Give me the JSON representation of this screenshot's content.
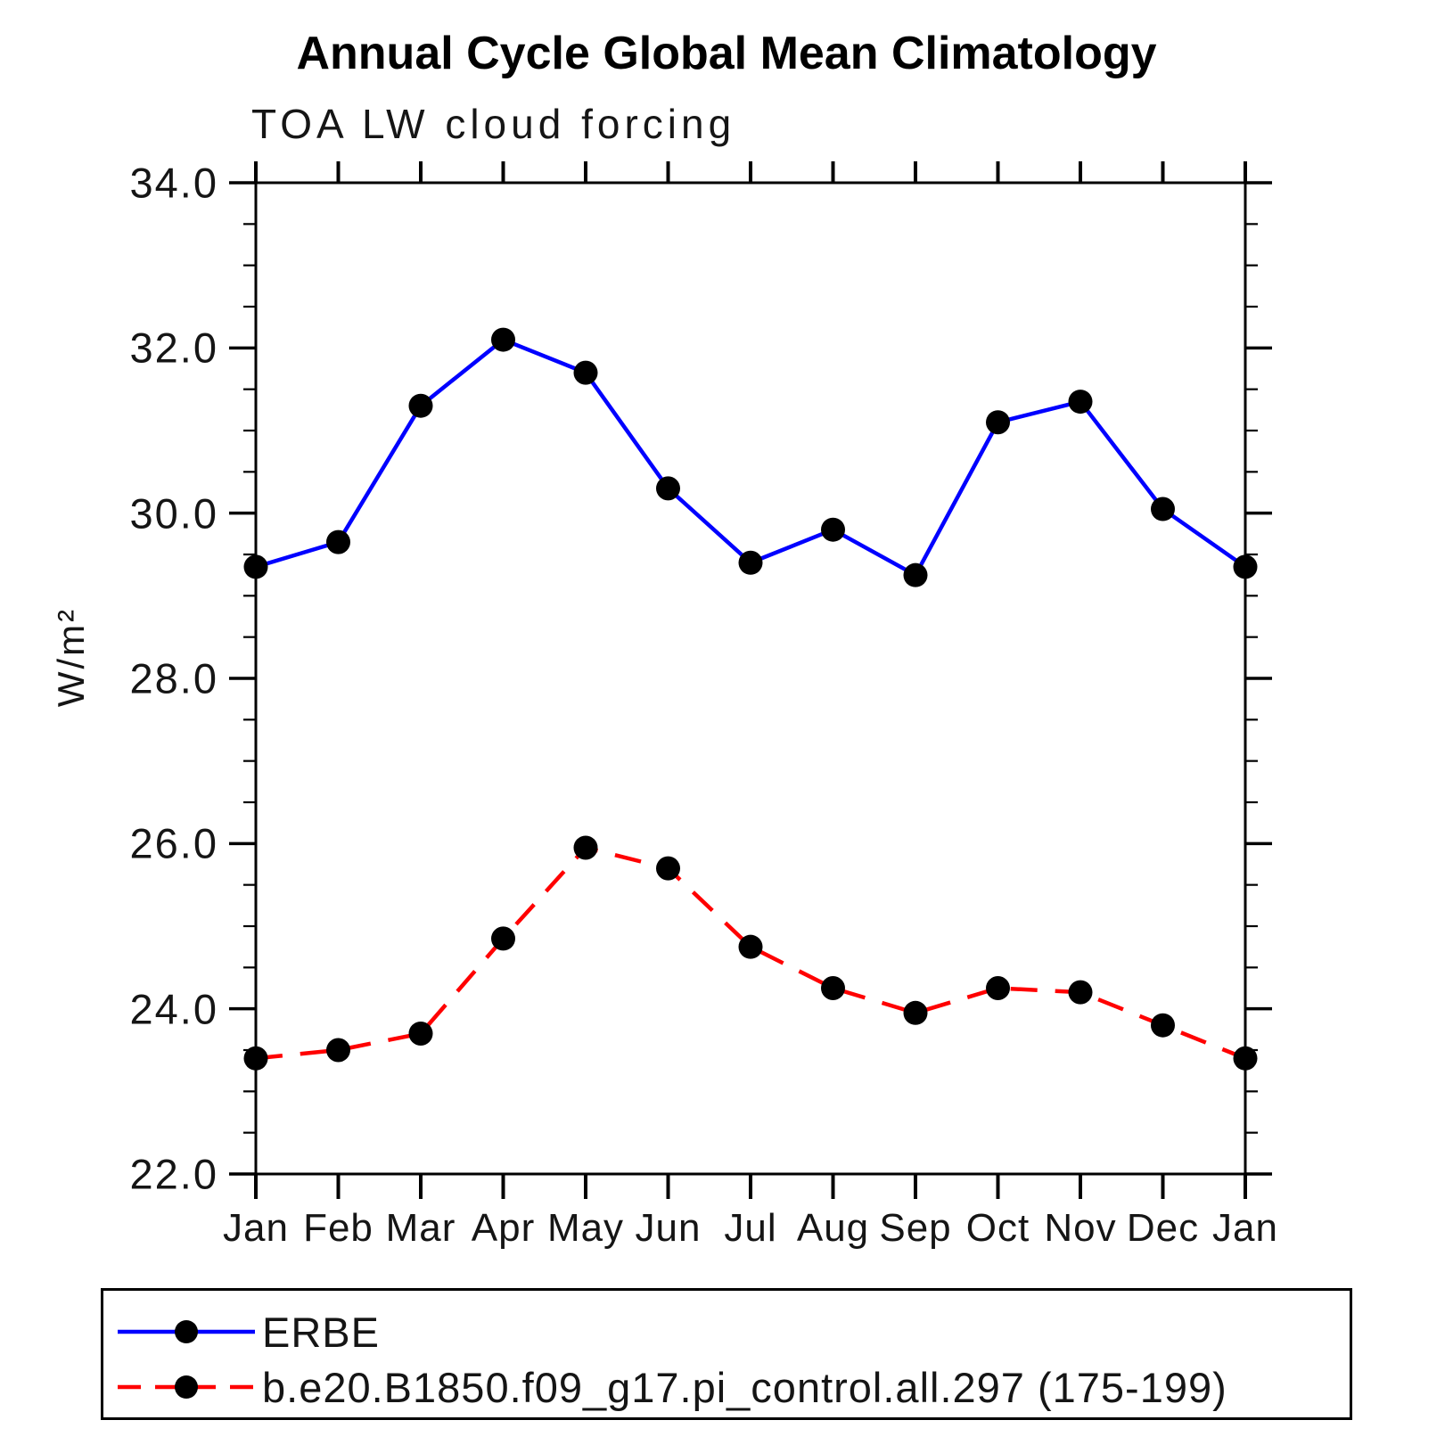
{
  "chart_data": {
    "type": "line",
    "title": "Annual Cycle Global Mean Climatology",
    "subtitle": "TOA LW cloud forcing",
    "ylabel": "W/m²",
    "xlabel": "",
    "categories": [
      "Jan",
      "Feb",
      "Mar",
      "Apr",
      "May",
      "Jun",
      "Jul",
      "Aug",
      "Sep",
      "Oct",
      "Nov",
      "Dec",
      "Jan"
    ],
    "ylim": [
      22.0,
      34.0
    ],
    "ytick_major_step": 2.0,
    "ytick_minor_step": 0.5,
    "ytick_labels": [
      "34.0",
      "32.0",
      "30.0",
      "28.0",
      "26.0",
      "24.0",
      "22.0"
    ],
    "grid": false,
    "legend_position": "bottom-left-box",
    "frame_color": "#000000",
    "series": [
      {
        "name": "ERBE",
        "line_color": "#0000ff",
        "line_style": "solid",
        "marker": "filled-circle",
        "marker_color": "#000000",
        "values": [
          29.35,
          29.65,
          31.3,
          32.1,
          31.7,
          30.3,
          29.4,
          29.8,
          29.25,
          31.1,
          31.35,
          30.05,
          29.35
        ]
      },
      {
        "name": "b.e20.B1850.f09_g17.pi_control.all.297 (175-199)",
        "line_color": "#ff0000",
        "line_style": "dashed",
        "marker": "filled-circle",
        "marker_color": "#000000",
        "values": [
          23.4,
          23.5,
          23.7,
          24.85,
          25.95,
          25.7,
          24.75,
          24.25,
          23.95,
          24.25,
          24.2,
          23.8,
          23.4
        ]
      }
    ]
  }
}
